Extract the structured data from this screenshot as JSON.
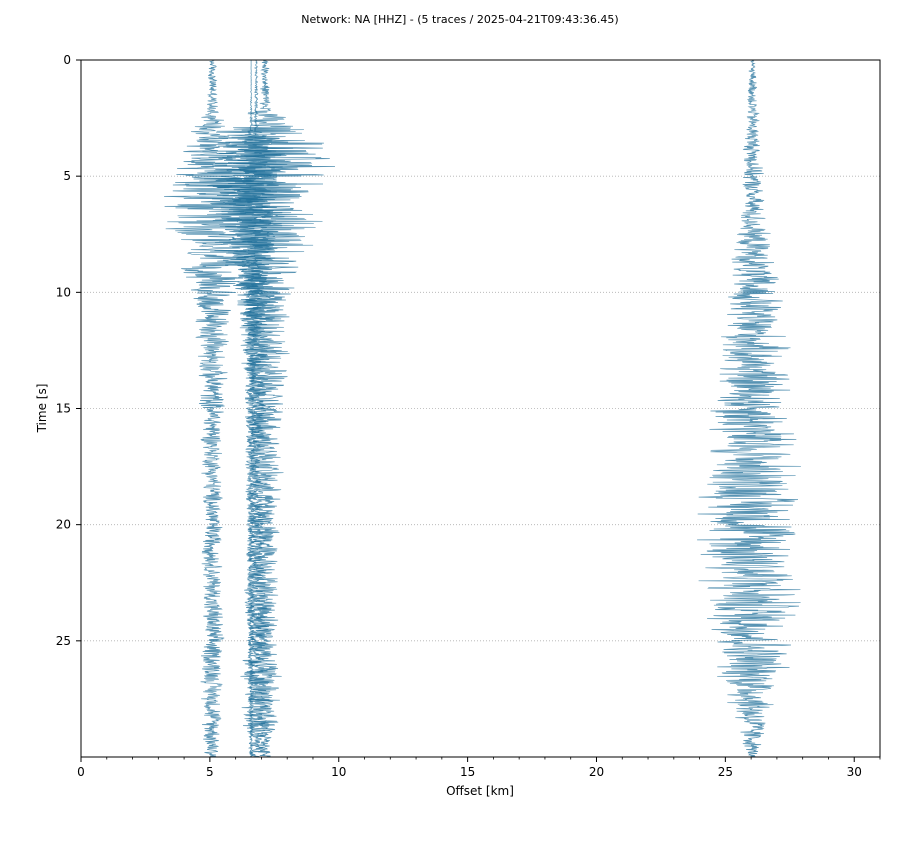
{
  "chart_data": {
    "type": "line",
    "title": "Network: NA [HHZ] - (5 traces / 2025-04-21T09:43:36.45)",
    "xlabel": "Offset [km]",
    "ylabel": "Time [s]",
    "xlim": [
      0,
      31
    ],
    "ylim": [
      30,
      0
    ],
    "y_inverted": true,
    "grid": "horizontal dotted",
    "xticks": [
      0,
      5,
      10,
      15,
      20,
      25,
      30
    ],
    "xtick_labels": [
      "0",
      "5",
      "10",
      "15",
      "20",
      "25",
      "30"
    ],
    "yticks": [
      0,
      5,
      10,
      15,
      20,
      25
    ],
    "ytick_labels": [
      "0",
      "5",
      "10",
      "15",
      "20",
      "25"
    ],
    "trace_color": "#1f6f9a",
    "series": [
      {
        "offset": 5.1,
        "envelope": [
          [
            0,
            0.18
          ],
          [
            2,
            0.25
          ],
          [
            3,
            0.9
          ],
          [
            4,
            1.4
          ],
          [
            5,
            2.0
          ],
          [
            6,
            2.6
          ],
          [
            7,
            2.3
          ],
          [
            9,
            1.4
          ],
          [
            11,
            0.8
          ],
          [
            14,
            0.6
          ],
          [
            17,
            0.45
          ],
          [
            22,
            0.45
          ],
          [
            26,
            0.5
          ],
          [
            30,
            0.4
          ]
        ]
      },
      {
        "offset": 6.8,
        "envelope": [
          [
            0,
            0.05
          ],
          [
            3,
            0.1
          ],
          [
            3.5,
            0.8
          ],
          [
            5,
            1.1
          ],
          [
            8,
            1.0
          ],
          [
            12,
            0.6
          ],
          [
            18,
            0.3
          ],
          [
            26,
            0.6
          ],
          [
            28,
            0.7
          ],
          [
            30,
            0.3
          ]
        ]
      },
      {
        "offset": 7.15,
        "envelope": [
          [
            0,
            0.15
          ],
          [
            2,
            0.25
          ],
          [
            3,
            2.0
          ],
          [
            4,
            2.8
          ],
          [
            5,
            3.0
          ],
          [
            6,
            2.5
          ],
          [
            7.5,
            2.4
          ],
          [
            9,
            1.8
          ],
          [
            12,
            1.1
          ],
          [
            16,
            0.8
          ],
          [
            20,
            0.6
          ],
          [
            25,
            0.6
          ],
          [
            27,
            0.8
          ],
          [
            30,
            0.3
          ]
        ]
      },
      {
        "offset": 6.6,
        "envelope": [
          [
            0,
            0.0
          ],
          [
            3,
            0.05
          ],
          [
            3.5,
            1.6
          ],
          [
            5,
            2.0
          ],
          [
            7,
            1.6
          ],
          [
            9,
            0.9
          ],
          [
            12,
            0.3
          ],
          [
            30,
            0.1
          ]
        ]
      },
      {
        "offset": 26.05,
        "envelope": [
          [
            0,
            0.12
          ],
          [
            3,
            0.35
          ],
          [
            6,
            0.5
          ],
          [
            8,
            0.8
          ],
          [
            10,
            1.3
          ],
          [
            13,
            1.6
          ],
          [
            16,
            2.0
          ],
          [
            19,
            2.2
          ],
          [
            22,
            2.4
          ],
          [
            24,
            2.1
          ],
          [
            27,
            1.4
          ],
          [
            30,
            0.2
          ]
        ]
      }
    ]
  }
}
